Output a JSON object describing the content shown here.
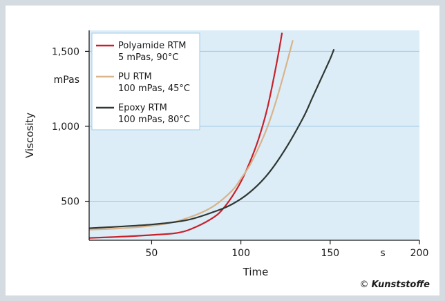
{
  "chart_data": {
    "type": "line",
    "xlabel": "Time",
    "ylabel": "Viscosity",
    "x_unit": "s",
    "y_unit": "mPas",
    "xlim": [
      15,
      200
    ],
    "ylim": [
      240,
      1640
    ],
    "x_ticks": [
      50,
      100,
      150,
      200
    ],
    "y_ticks": [
      500,
      1000,
      1500
    ],
    "x_tick_labels": [
      "50",
      "100",
      "150",
      "200"
    ],
    "y_tick_labels": [
      "500",
      "1,000",
      "1,500"
    ],
    "grid": "horizontal",
    "legend_position": "top-left",
    "series": [
      {
        "name": "Polyamide RTM",
        "note": "5 mPas, 90°C",
        "color": "#c8202a",
        "x": [
          15,
          30,
          50,
          65,
          75,
          85,
          90,
          95,
          100,
          105,
          110,
          115,
          120,
          123
        ],
        "y": [
          255,
          262,
          275,
          290,
          330,
          395,
          450,
          530,
          630,
          760,
          920,
          1130,
          1420,
          1620
        ]
      },
      {
        "name": "PU RTM",
        "note": "100 mPas, 45°C",
        "color": "#d9b38a",
        "x": [
          15,
          40,
          60,
          75,
          85,
          95,
          100,
          105,
          110,
          115,
          120,
          125,
          129
        ],
        "y": [
          310,
          325,
          355,
          410,
          470,
          570,
          650,
          740,
          860,
          1000,
          1180,
          1390,
          1570
        ]
      },
      {
        "name": "Epoxy RTM",
        "note": "100 mPas, 80°C",
        "color": "#2f3733",
        "x": [
          15,
          50,
          70,
          85,
          95,
          105,
          115,
          125,
          135,
          140,
          145,
          150,
          152
        ],
        "y": [
          320,
          345,
          375,
          430,
          480,
          560,
          680,
          850,
          1060,
          1190,
          1320,
          1450,
          1510
        ]
      }
    ]
  },
  "credit": {
    "symbol": "©",
    "brand": "Kunststoffe"
  }
}
